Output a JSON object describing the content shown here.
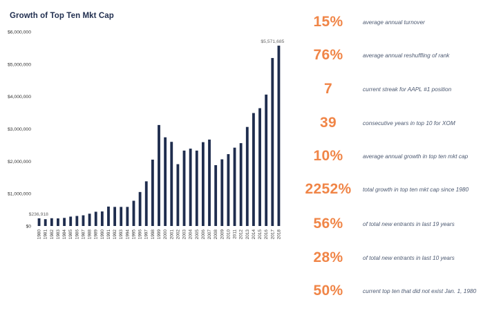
{
  "chart_data": {
    "type": "bar",
    "title": "Growth of Top Ten Mkt Cap",
    "categories": [
      "1980",
      "1981",
      "1982",
      "1983",
      "1984",
      "1985",
      "1986",
      "1987",
      "1988",
      "1989",
      "1990",
      "1991",
      "1992",
      "1993",
      "1994",
      "1995",
      "1996",
      "1997",
      "1998",
      "1999",
      "2000",
      "2001",
      "2002",
      "2003",
      "2004",
      "2005",
      "2006",
      "2007",
      "2008",
      "2009",
      "2010",
      "2011",
      "2012",
      "2013",
      "2014",
      "2015",
      "2016",
      "2017",
      "2018"
    ],
    "values": [
      236918,
      210000,
      240000,
      235000,
      250000,
      290000,
      310000,
      330000,
      380000,
      440000,
      450000,
      600000,
      590000,
      590000,
      590000,
      780000,
      1050000,
      1380000,
      2050000,
      3120000,
      2740000,
      2600000,
      1910000,
      2330000,
      2390000,
      2330000,
      2590000,
      2670000,
      1880000,
      2060000,
      2220000,
      2420000,
      2560000,
      3060000,
      3490000,
      3640000,
      4060000,
      5190000,
      5571685
    ],
    "ylim": [
      0,
      6000000
    ],
    "yticks": [
      "$0",
      "$1,000,000",
      "$2,000,000",
      "$3,000,000",
      "$4,000,000",
      "$5,000,000",
      "$6,000,000"
    ],
    "data_labels": [
      {
        "index": 0,
        "text": "$236,918"
      },
      {
        "index": 38,
        "text": "$5,571,685"
      }
    ],
    "xlabel": "",
    "ylabel": "",
    "grid": false,
    "bar_color": "#1f2d4e"
  },
  "stats": [
    {
      "value": "15%",
      "desc": "average annual turnover"
    },
    {
      "value": "76%",
      "desc": "average annual reshuffling of rank"
    },
    {
      "value": "7",
      "desc": "current streak for AAPL #1 position"
    },
    {
      "value": "39",
      "desc": "consecutive years in top 10 for XOM"
    },
    {
      "value": "10%",
      "desc": "average annual growth in top ten mkt cap"
    },
    {
      "value": "2252%",
      "desc": "total growth in top ten mkt cap since 1980"
    },
    {
      "value": "56%",
      "desc": "of total new entrants in last 19 years"
    },
    {
      "value": "28%",
      "desc": "of total new entrants in last 10 years"
    },
    {
      "value": "50%",
      "desc": "current top ten that did not exist Jan. 1, 1980"
    }
  ],
  "colors": {
    "accent": "#f08547",
    "bars": "#1f2d4e",
    "desc_text": "#4b5870"
  }
}
